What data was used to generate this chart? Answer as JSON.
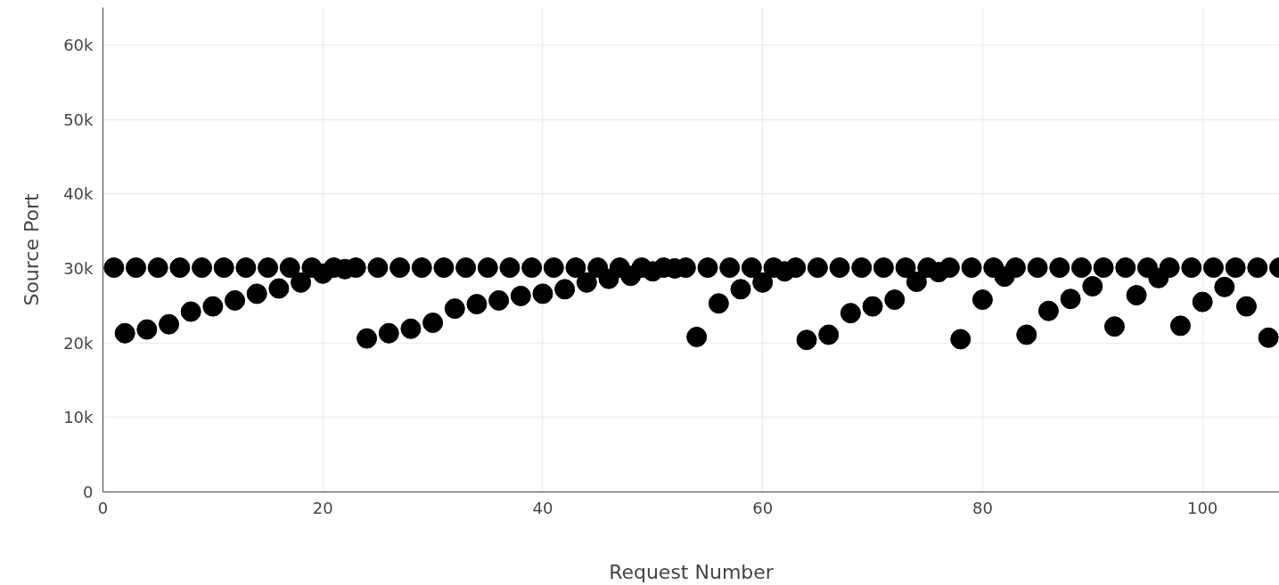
{
  "chart_data": {
    "type": "scatter",
    "xlabel": "Request Number",
    "ylabel": "Source Port",
    "series": [
      {
        "color": "#000000",
        "x": [
          1,
          2,
          3,
          4,
          5,
          6,
          7,
          8,
          9,
          10,
          11,
          12,
          13,
          14,
          15,
          16,
          17,
          18,
          19,
          20,
          21,
          22,
          23,
          24,
          25,
          26,
          27,
          28,
          29,
          30,
          31,
          32,
          33,
          34,
          35,
          36,
          37,
          38,
          39,
          40,
          41,
          42,
          43,
          44,
          45,
          46,
          47,
          48,
          49,
          50,
          51,
          52,
          53,
          54,
          55,
          56,
          57,
          58,
          59,
          60,
          61,
          62,
          63,
          64,
          65,
          66,
          67,
          68,
          69,
          70,
          71,
          72,
          73,
          74,
          75,
          76,
          77,
          78,
          79,
          80,
          81,
          82,
          83,
          84,
          85,
          86,
          87,
          88,
          89,
          90,
          91,
          92,
          93,
          94,
          95,
          96,
          97,
          98,
          99,
          100,
          101,
          102,
          103,
          104,
          105,
          106,
          107
        ],
        "values": [
          30100,
          21300,
          30100,
          21800,
          30100,
          22500,
          30100,
          24200,
          30100,
          24900,
          30100,
          25700,
          30100,
          26600,
          30100,
          27300,
          30100,
          28100,
          30100,
          29300,
          30100,
          29900,
          30100,
          20600,
          30100,
          21300,
          30100,
          21900,
          30100,
          22700,
          30100,
          24600,
          30100,
          25200,
          30100,
          25700,
          30100,
          26300,
          30100,
          26600,
          30100,
          27200,
          30100,
          28100,
          30100,
          28600,
          30100,
          29000,
          30100,
          29600,
          30100,
          30000,
          30100,
          20800,
          30100,
          25300,
          30100,
          27200,
          30100,
          28100,
          30100,
          29600,
          30100,
          20400,
          30100,
          21100,
          30100,
          24000,
          30100,
          24900,
          30100,
          25800,
          30100,
          28200,
          30100,
          29500,
          30100,
          20500,
          30100,
          25800,
          30100,
          28900,
          30100,
          21100,
          30100,
          24300,
          30100,
          25900,
          30100,
          27600,
          30100,
          22200,
          30100,
          26400,
          30100,
          28700,
          30100,
          22300,
          30100,
          25500,
          30100,
          27500,
          30100,
          24900,
          30100,
          20700,
          30100
        ]
      }
    ],
    "xlim": [
      0,
      107
    ],
    "ylim": [
      0,
      65000
    ],
    "xticks": [
      0,
      20,
      40,
      60,
      80,
      100
    ],
    "yticks": [
      0,
      {
        "value": 10000,
        "label": "10k"
      },
      {
        "value": 20000,
        "label": "20k"
      },
      {
        "value": 30000,
        "label": "30k"
      },
      {
        "value": 40000,
        "label": "40k"
      },
      {
        "value": 50000,
        "label": "50k"
      },
      {
        "value": 60000,
        "label": "60k"
      }
    ],
    "grid": true,
    "marker": "circle"
  }
}
